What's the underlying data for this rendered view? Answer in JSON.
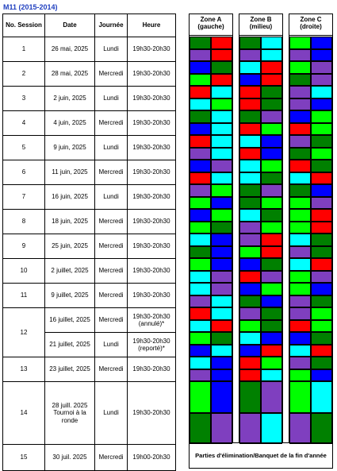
{
  "title": "M11 (2015-2014)",
  "headers": {
    "session": "No. Session",
    "date": "Date",
    "day": "Journée",
    "time": "Heure"
  },
  "rows": [
    {
      "session": "1",
      "date": "26 mai, 2025",
      "day": "Lundi",
      "time": "19h30-20h30"
    },
    {
      "session": "2",
      "date": "28 mai, 2025",
      "day": "Mercredi",
      "time": "19h30-20h30"
    },
    {
      "session": "3",
      "date": "2 juin, 2025",
      "day": "Lundi",
      "time": "19h30-20h30"
    },
    {
      "session": "4",
      "date": "4 juin, 2025",
      "day": "Mercredi",
      "time": "19h30-20h30"
    },
    {
      "session": "5",
      "date": "9 juin, 2025",
      "day": "Lundi",
      "time": "19h30-20h30"
    },
    {
      "session": "6",
      "date": "11 juin, 2025",
      "day": "Mercredi",
      "time": "19h30-20h30"
    },
    {
      "session": "7",
      "date": "16 juin, 2025",
      "day": "Lundi",
      "time": "19h30-20h30"
    },
    {
      "session": "8",
      "date": "18 juin, 2025",
      "day": "Mercredi",
      "time": "19h30-20h30"
    },
    {
      "session": "9",
      "date": "25 juin, 2025",
      "day": "Mercredi",
      "time": "19h30-20h30"
    },
    {
      "session": "10",
      "date": "2 juillet, 2025",
      "day": "Mercredi",
      "time": "19h30-20h30"
    },
    {
      "session": "11",
      "date": "9 juillet, 2025",
      "day": "Mercredi",
      "time": "19h30-20h30"
    },
    {
      "session": "12",
      "date": "16 juillet, 2025",
      "day": "Mercredi",
      "time": "19h30-20h30 (annulé)*",
      "date2": "21 juillet, 2025",
      "day2": "Lundi",
      "time2": "19h30-20h30 (reporté)*"
    },
    {
      "session": "13",
      "date": "23 juillet, 2025",
      "day": "Mercredi",
      "time": "19h30-20h30"
    },
    {
      "session": "14",
      "date": "28 juill. 2025 Tournoi à la ronde",
      "day": "Lundi",
      "time": "19h30-20h30"
    },
    {
      "session": "15",
      "date": "30 juil. 2025",
      "day": "Mercredi",
      "time": "19h00-20h30"
    }
  ],
  "zones": [
    {
      "title": "Zone A",
      "subtitle": "(gauche)"
    },
    {
      "title": "Zone B",
      "subtitle": "(milieu)"
    },
    {
      "title": "Zone C",
      "subtitle": "(droite)"
    }
  ],
  "final_note": "Parties d'élimination/Banquet de la fin d'année",
  "team_colors": {
    "R": "#ff0000",
    "G": "#00ff00",
    "B": "#0000ff",
    "D": "#008000",
    "C": "#00ffff",
    "P": "#7f3fbf"
  },
  "grid": [
    [
      "DR",
      "PR",
      "DC",
      "PC",
      "GB",
      "PB"
    ],
    [
      "BD",
      "GR",
      "CR",
      "BR",
      "GP",
      "DP"
    ],
    [
      "RC",
      "CG",
      "RD",
      "RD",
      "PC",
      "PB"
    ],
    [
      "DC",
      "BC",
      "DP",
      "RG",
      "BG",
      "RG"
    ],
    [
      "RC",
      "PC",
      "CB",
      "RB",
      "PD",
      "DG"
    ],
    [
      "BP",
      "RC",
      "CG",
      "CD",
      "RD",
      "CR"
    ],
    [
      "PG",
      "GB",
      "DP",
      "DG",
      "DB",
      "GP"
    ],
    [
      "BG",
      "GD",
      "CD",
      "PG",
      "GR",
      "GR"
    ],
    [
      "CB",
      "DB",
      "PR",
      "GR",
      "CD",
      "PD"
    ],
    [
      "GB",
      "CP",
      "BD",
      "RP",
      "CR",
      "GP"
    ],
    [
      "CP",
      "PC",
      "BG",
      "DB",
      "GB",
      "PD"
    ],
    [
      "RC",
      "CR",
      "GD",
      "BC",
      "PD",
      "GD",
      "CB",
      "BR",
      "PG",
      "RG",
      "BD",
      "CR"
    ],
    [
      "CB",
      "PB",
      "RG",
      "RC",
      "PD",
      "GB"
    ],
    [
      "GB",
      "DP",
      "DP",
      "PC",
      "GC",
      "PD"
    ],
    []
  ]
}
